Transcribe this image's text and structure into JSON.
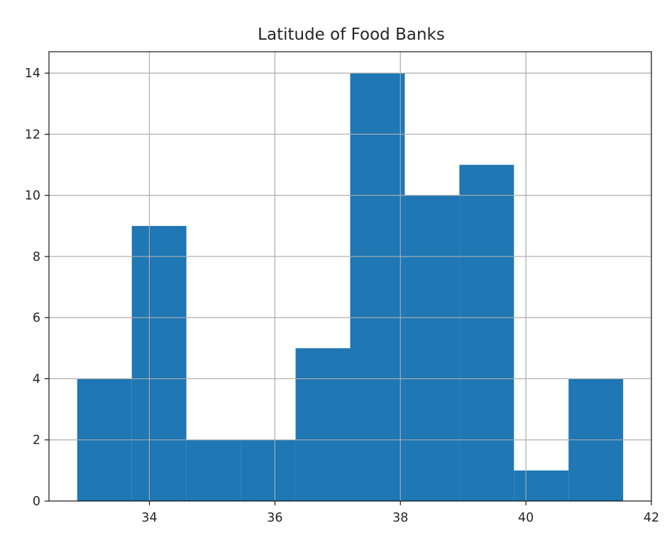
{
  "chart_data": {
    "type": "bar",
    "title": "Latitude of Food Banks",
    "xlabel": "",
    "ylabel": "",
    "bin_edges": [
      32.85,
      33.72,
      34.59,
      35.46,
      36.33,
      37.2,
      38.07,
      38.94,
      39.81,
      40.68,
      41.55
    ],
    "values": [
      4,
      9,
      2,
      2,
      5,
      14,
      10,
      11,
      1,
      4
    ],
    "xlim": [
      32.4,
      42.0
    ],
    "ylim": [
      0,
      14.7
    ],
    "xticks": [
      34,
      36,
      38,
      40,
      42
    ],
    "yticks": [
      0,
      2,
      4,
      6,
      8,
      10,
      12,
      14
    ],
    "grid": true,
    "colors": {
      "bar": "#1f77b4",
      "grid": "#b0b0b0",
      "axis": "#000000"
    }
  }
}
